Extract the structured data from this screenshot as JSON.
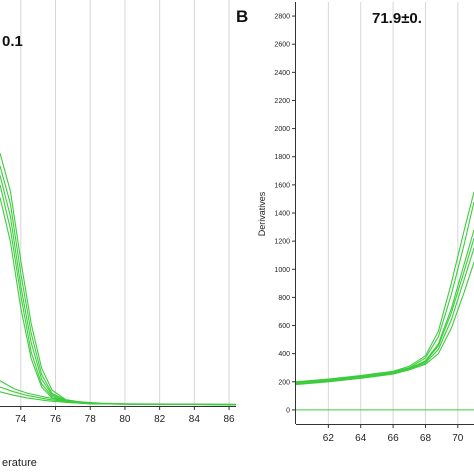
{
  "colors": {
    "curve": "#3dcc3d",
    "grid": "#d6d6d6",
    "axis": "#333333"
  },
  "chart_data": [
    {
      "type": "line",
      "panel": "",
      "annotation": "0.1",
      "xlabel": "erature",
      "ylabel": "",
      "xlim": [
        72.8,
        86.4
      ],
      "ylim": [
        0,
        1
      ],
      "x_ticks": [
        74,
        76,
        78,
        80,
        82,
        84,
        86
      ],
      "grid": true,
      "series": [
        {
          "values": [
            [
              72.8,
              0.8
            ],
            [
              73.4,
              0.68
            ],
            [
              74.0,
              0.46
            ],
            [
              74.6,
              0.26
            ],
            [
              75.2,
              0.12
            ],
            [
              75.8,
              0.05
            ],
            [
              76.6,
              0.02
            ],
            [
              78.0,
              0.008
            ],
            [
              80.0,
              0.006
            ],
            [
              86.4,
              0.004
            ]
          ]
        },
        {
          "values": [
            [
              72.8,
              0.76
            ],
            [
              73.4,
              0.64
            ],
            [
              74.0,
              0.42
            ],
            [
              74.6,
              0.23
            ],
            [
              75.2,
              0.1
            ],
            [
              75.8,
              0.04
            ],
            [
              76.6,
              0.018
            ],
            [
              78.0,
              0.008
            ],
            [
              80.0,
              0.006
            ],
            [
              86.4,
              0.004
            ]
          ]
        },
        {
          "values": [
            [
              72.8,
              0.73
            ],
            [
              73.4,
              0.6
            ],
            [
              74.0,
              0.38
            ],
            [
              74.6,
              0.2
            ],
            [
              75.2,
              0.085
            ],
            [
              75.8,
              0.035
            ],
            [
              76.6,
              0.015
            ],
            [
              78.0,
              0.007
            ],
            [
              80.0,
              0.006
            ],
            [
              86.4,
              0.004
            ]
          ]
        },
        {
          "values": [
            [
              72.8,
              0.7
            ],
            [
              73.4,
              0.56
            ],
            [
              74.0,
              0.35
            ],
            [
              74.6,
              0.17
            ],
            [
              75.2,
              0.07
            ],
            [
              75.8,
              0.03
            ],
            [
              76.6,
              0.013
            ],
            [
              78.0,
              0.007
            ],
            [
              80.0,
              0.006
            ],
            [
              86.4,
              0.004
            ]
          ]
        },
        {
          "values": [
            [
              72.8,
              0.66
            ],
            [
              73.4,
              0.52
            ],
            [
              74.0,
              0.31
            ],
            [
              74.6,
              0.15
            ],
            [
              75.2,
              0.06
            ],
            [
              75.8,
              0.025
            ],
            [
              76.6,
              0.012
            ],
            [
              78.0,
              0.007
            ],
            [
              80.0,
              0.006
            ],
            [
              86.4,
              0.004
            ]
          ]
        },
        {
          "values": [
            [
              72.8,
              0.08
            ],
            [
              73.6,
              0.055
            ],
            [
              74.4,
              0.04
            ],
            [
              75.6,
              0.026
            ],
            [
              77.0,
              0.015
            ],
            [
              78.6,
              0.009
            ],
            [
              80.0,
              0.007
            ],
            [
              86.4,
              0.005
            ]
          ]
        },
        {
          "values": [
            [
              72.8,
              0.06
            ],
            [
              73.6,
              0.045
            ],
            [
              74.4,
              0.033
            ],
            [
              75.6,
              0.021
            ],
            [
              77.0,
              0.012
            ],
            [
              78.6,
              0.008
            ],
            [
              80.0,
              0.006
            ],
            [
              86.4,
              0.005
            ]
          ]
        },
        {
          "values": [
            [
              72.8,
              0.045
            ],
            [
              73.6,
              0.034
            ],
            [
              74.4,
              0.025
            ],
            [
              75.6,
              0.016
            ],
            [
              77.0,
              0.01
            ],
            [
              78.6,
              0.007
            ],
            [
              80.0,
              0.006
            ],
            [
              86.4,
              0.005
            ]
          ]
        }
      ]
    },
    {
      "type": "line",
      "panel": "B",
      "annotation": "71.9±0.",
      "xlabel": "",
      "ylabel": "Derivatives",
      "xlim": [
        60,
        71
      ],
      "ylim": [
        -100,
        2900
      ],
      "x_ticks": [
        62,
        64,
        66,
        68,
        70
      ],
      "y_ticks": [
        0,
        200,
        400,
        600,
        800,
        1000,
        1200,
        1400,
        1600,
        1800,
        2000,
        2200,
        2400,
        2600,
        2800
      ],
      "grid": true,
      "baseline": 0,
      "series": [
        {
          "values": [
            [
              60,
              195
            ],
            [
              62,
              215
            ],
            [
              64,
              240
            ],
            [
              66,
              270
            ],
            [
              67,
              300
            ],
            [
              68,
              370
            ],
            [
              68.8,
              520
            ],
            [
              69.6,
              820
            ],
            [
              70.4,
              1180
            ],
            [
              71,
              1480
            ]
          ]
        },
        {
          "values": [
            [
              60,
              190
            ],
            [
              62,
              210
            ],
            [
              64,
              235
            ],
            [
              66,
              265
            ],
            [
              67,
              295
            ],
            [
              68,
              350
            ],
            [
              68.8,
              470
            ],
            [
              69.6,
              720
            ],
            [
              70.4,
              1040
            ],
            [
              71,
              1280
            ]
          ]
        },
        {
          "values": [
            [
              60,
              185
            ],
            [
              62,
              205
            ],
            [
              64,
              230
            ],
            [
              66,
              260
            ],
            [
              67,
              290
            ],
            [
              68,
              335
            ],
            [
              68.8,
              430
            ],
            [
              69.6,
              640
            ],
            [
              70.4,
              930
            ],
            [
              71,
              1150
            ]
          ]
        },
        {
          "values": [
            [
              60,
              200
            ],
            [
              62,
              220
            ],
            [
              64,
              245
            ],
            [
              66,
              275
            ],
            [
              67,
              310
            ],
            [
              68,
              385
            ],
            [
              68.8,
              560
            ],
            [
              69.6,
              900
            ],
            [
              70.4,
              1280
            ],
            [
              71,
              1550
            ]
          ]
        },
        {
          "values": [
            [
              60,
              180
            ],
            [
              62,
              200
            ],
            [
              64,
              225
            ],
            [
              66,
              255
            ],
            [
              67,
              285
            ],
            [
              68,
              325
            ],
            [
              68.8,
              400
            ],
            [
              69.6,
              580
            ],
            [
              70.4,
              840
            ],
            [
              71,
              1050
            ]
          ]
        },
        {
          "values": [
            [
              60,
              188
            ],
            [
              62,
              208
            ],
            [
              64,
              232
            ],
            [
              66,
              262
            ],
            [
              67,
              293
            ],
            [
              68,
              345
            ],
            [
              68.8,
              455
            ],
            [
              69.6,
              690
            ],
            [
              70.4,
              990
            ],
            [
              71,
              1220
            ]
          ]
        }
      ]
    }
  ]
}
